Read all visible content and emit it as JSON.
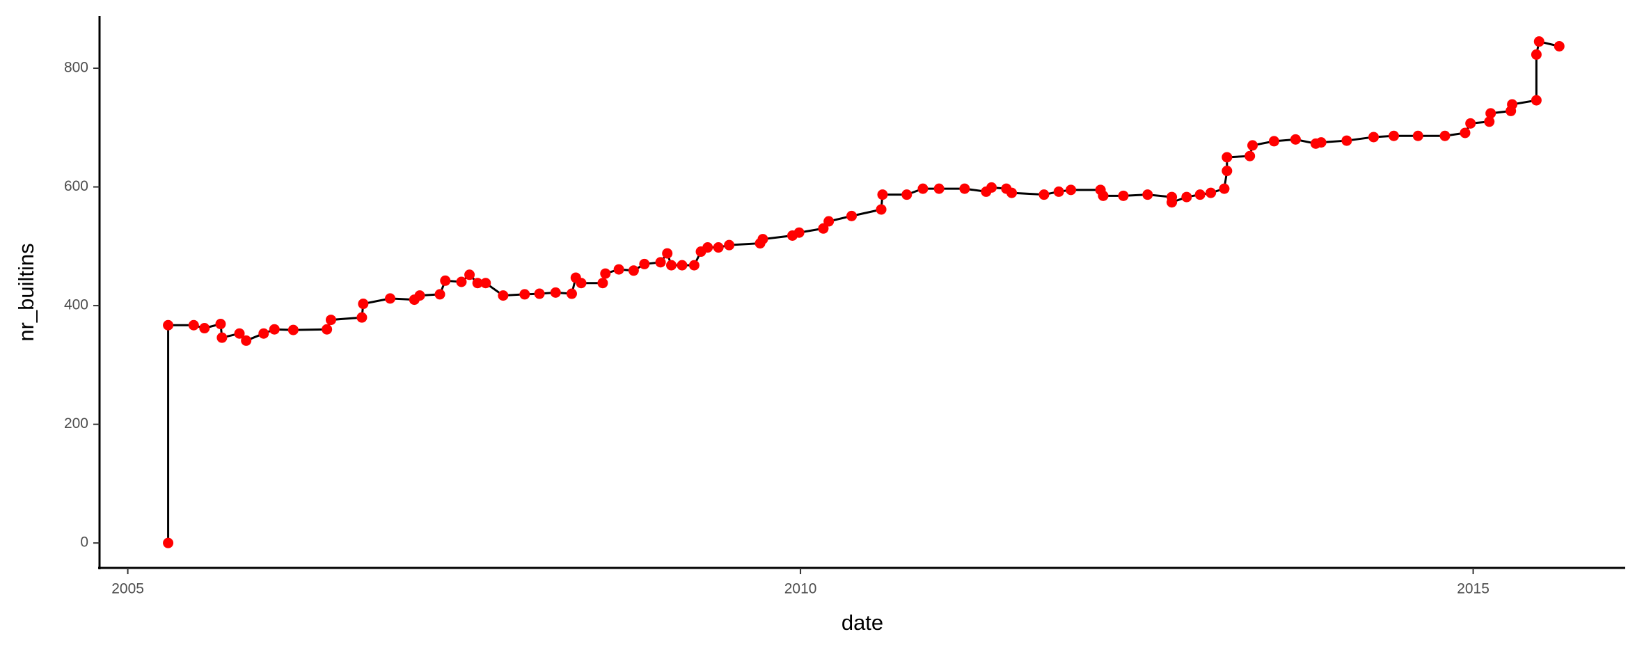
{
  "chart_data": {
    "type": "line",
    "x_label": "date",
    "y_label": "nr_builtins",
    "x": [
      2005.3,
      2005.3,
      2005.49,
      2005.57,
      2005.69,
      2005.7,
      2005.83,
      2005.88,
      2006.01,
      2006.09,
      2006.23,
      2006.48,
      2006.51,
      2006.74,
      2006.75,
      2006.95,
      2007.13,
      2007.17,
      2007.32,
      2007.36,
      2007.48,
      2007.54,
      2007.6,
      2007.66,
      2007.79,
      2007.95,
      2008.06,
      2008.18,
      2008.3,
      2008.33,
      2008.37,
      2008.53,
      2008.55,
      2008.65,
      2008.76,
      2008.84,
      2008.96,
      2009.01,
      2009.04,
      2009.12,
      2009.21,
      2009.26,
      2009.31,
      2009.39,
      2009.47,
      2009.7,
      2009.72,
      2009.94,
      2009.99,
      2010.17,
      2010.21,
      2010.38,
      2010.6,
      2010.61,
      2010.79,
      2010.91,
      2011.03,
      2011.22,
      2011.38,
      2011.42,
      2011.53,
      2011.57,
      2011.81,
      2011.92,
      2012.01,
      2012.23,
      2012.25,
      2012.4,
      2012.58,
      2012.76,
      2012.76,
      2012.87,
      2012.97,
      2013.05,
      2013.15,
      2013.17,
      2013.17,
      2013.34,
      2013.36,
      2013.52,
      2013.68,
      2013.83,
      2013.87,
      2014.06,
      2014.26,
      2014.41,
      2014.59,
      2014.79,
      2014.94,
      2014.98,
      2015.12,
      2015.13,
      2015.28,
      2015.29,
      2015.47,
      2015.47,
      2015.49,
      2015.64
    ],
    "values": [
      0,
      367,
      367,
      362,
      369,
      346,
      353,
      341,
      353,
      360,
      359,
      360,
      376,
      380,
      403,
      412,
      410,
      417,
      419,
      442,
      440,
      452,
      438,
      438,
      417,
      419,
      420,
      422,
      420,
      447,
      438,
      438,
      454,
      461,
      459,
      470,
      473,
      488,
      468,
      468,
      468,
      491,
      498,
      498,
      502,
      505,
      512,
      518,
      523,
      530,
      542,
      551,
      562,
      587,
      587,
      597,
      597,
      597,
      592,
      599,
      597,
      590,
      587,
      592,
      595,
      595,
      585,
      585,
      587,
      583,
      574,
      583,
      587,
      590,
      597,
      627,
      650,
      652,
      670,
      677,
      680,
      673,
      675,
      678,
      684,
      686,
      686,
      686,
      691,
      707,
      710,
      724,
      728,
      739,
      746,
      823,
      845,
      837
    ],
    "color": "#ff0000",
    "line_color": "#000000",
    "xlim": [
      2004.79,
      2016.13
    ],
    "xticks": [
      2005,
      2010,
      2015
    ],
    "ylim": [
      -42,
      888
    ],
    "yticks": [
      0,
      200,
      400,
      600,
      800
    ],
    "grid": false
  }
}
